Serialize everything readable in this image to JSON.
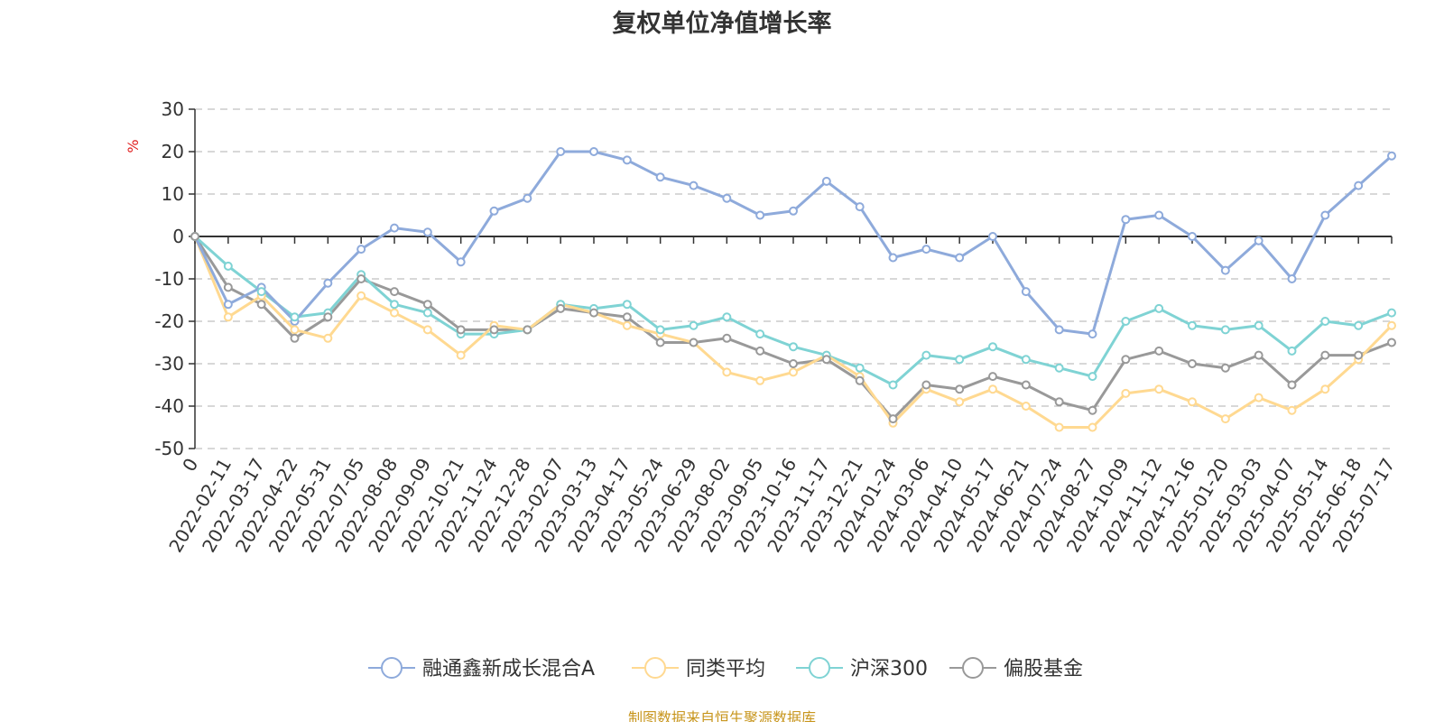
{
  "chart_data": {
    "type": "line",
    "title": "复权单位净值增长率",
    "ylabel": "%",
    "ylim": [
      -50,
      30
    ],
    "yticks": [
      30,
      20,
      10,
      0,
      -10,
      -20,
      -30,
      -40,
      -50
    ],
    "grid": "horizontal dashed",
    "legend_position": "bottom",
    "x_labels": [
      "0",
      "2022-02-11",
      "2022-03-17",
      "2022-04-22",
      "2022-05-31",
      "2022-07-05",
      "2022-08-08",
      "2022-09-09",
      "2022-10-21",
      "2022-11-24",
      "2022-12-28",
      "2023-02-07",
      "2023-03-13",
      "2023-04-17",
      "2023-05-24",
      "2023-06-29",
      "2023-08-02",
      "2023-09-05",
      "2023-10-16",
      "2023-11-17",
      "2023-12-21",
      "2024-01-24",
      "2024-03-06",
      "2024-04-10",
      "2024-05-17",
      "2024-06-21",
      "2024-07-24",
      "2024-08-27",
      "2024-10-09",
      "2024-11-12",
      "2024-12-16",
      "2025-01-20",
      "2025-03-03",
      "2025-04-07",
      "2025-05-14",
      "2025-06-18",
      "2025-07-17"
    ],
    "series": [
      {
        "name": "融通鑫新成长混合A",
        "color": "#8eaadb",
        "values": [
          0,
          -16,
          -12,
          -20,
          -11,
          -3,
          2,
          1,
          -6,
          6,
          9,
          20,
          20,
          18,
          14,
          12,
          9,
          5,
          6,
          13,
          7,
          -5,
          -3,
          -5,
          0,
          -13,
          -22,
          -23,
          4,
          5,
          0,
          -8,
          -1,
          -10,
          5,
          12,
          19
        ]
      },
      {
        "name": "同类平均",
        "color": "#ffd991",
        "values": [
          0,
          -19,
          -14,
          -22,
          -24,
          -14,
          -18,
          -22,
          -28,
          -21,
          -22,
          -16,
          -18,
          -21,
          -23,
          -25,
          -32,
          -34,
          -32,
          -28,
          -33,
          -44,
          -36,
          -39,
          -36,
          -40,
          -45,
          -45,
          -37,
          -36,
          -39,
          -43,
          -38,
          -41,
          -36,
          -29,
          -21
        ]
      },
      {
        "name": "沪深300",
        "color": "#7fd3d4",
        "values": [
          0,
          -7,
          -13,
          -19,
          -18,
          -9,
          -16,
          -18,
          -23,
          -23,
          -22,
          -16,
          -17,
          -16,
          -22,
          -21,
          -19,
          -23,
          -26,
          -28,
          -31,
          -35,
          -28,
          -29,
          -26,
          -29,
          -31,
          -33,
          -20,
          -17,
          -21,
          -22,
          -21,
          -27,
          -20,
          -21,
          -18
        ]
      },
      {
        "name": "偏股基金",
        "color": "#999999",
        "values": [
          0,
          -12,
          -16,
          -24,
          -19,
          -10,
          -13,
          -16,
          -22,
          -22,
          -22,
          -17,
          -18,
          -19,
          -25,
          -25,
          -24,
          -27,
          -30,
          -29,
          -34,
          -43,
          -35,
          -36,
          -33,
          -35,
          -39,
          -41,
          -29,
          -27,
          -30,
          -31,
          -28,
          -35,
          -28,
          -28,
          -25
        ]
      }
    ]
  },
  "source_note": "制图数据来自恒生聚源数据库"
}
